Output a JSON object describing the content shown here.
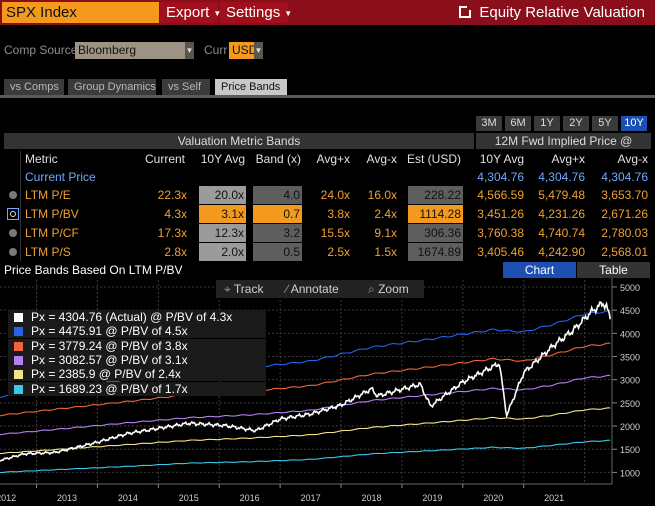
{
  "header": {
    "ticker": "SPX Index",
    "menus": [
      {
        "label": "Export"
      },
      {
        "label": "Settings"
      }
    ],
    "title": "Equity Relative Valuation"
  },
  "source_row": {
    "comp_source_label": "Comp Source",
    "comp_source_value": "Bloomberg",
    "curr_label": "Curr",
    "curr_value": "USD"
  },
  "tabs": [
    "vs Comps",
    "Group Dynamics",
    "vs Self",
    "Price Bands"
  ],
  "ranges": [
    "3M",
    "6M",
    "1Y",
    "2Y",
    "5Y",
    "10Y"
  ],
  "table": {
    "group_left": "Valuation Metric Bands",
    "group_right": "12M Fwd Implied Price @",
    "columns": [
      "Metric",
      "Current",
      "10Y Avg",
      "Band (x)",
      "Avg+x",
      "Avg-x",
      "Est (USD)",
      "10Y Avg",
      "Avg+x",
      "Avg-x"
    ],
    "current_price": {
      "label": "Current Price",
      "values": [
        "4,304.76",
        "4,304.76",
        "4,304.76"
      ]
    },
    "rows": [
      {
        "metric": "LTM P/E",
        "current": "22.3x",
        "avg": "20.0x",
        "band": "4.0",
        "avg_plus": "24.0x",
        "avg_minus": "16.0x",
        "est": "228.22",
        "p_avg": "4,566.59",
        "p_plus": "5,479.48",
        "p_minus": "3,653.70"
      },
      {
        "metric": "LTM P/BV",
        "current": "4.3x",
        "avg": "3.1x",
        "band": "0.7",
        "avg_plus": "3.8x",
        "avg_minus": "2.4x",
        "est": "1114.28",
        "p_avg": "3,451.26",
        "p_plus": "4,231.26",
        "p_minus": "2,671.26"
      },
      {
        "metric": "LTM P/CF",
        "current": "17.3x",
        "avg": "12.3x",
        "band": "3.2",
        "avg_plus": "15.5x",
        "avg_minus": "9.1x",
        "est": "306.36",
        "p_avg": "3,760.38",
        "p_plus": "4,740.74",
        "p_minus": "2,780.03"
      },
      {
        "metric": "LTM P/S",
        "current": "2.8x",
        "avg": "2.0x",
        "band": "0.5",
        "avg_plus": "2.5x",
        "avg_minus": "1.5x",
        "est": "1674.89",
        "p_avg": "3,405.46",
        "p_plus": "4,242.90",
        "p_minus": "2,568.01"
      }
    ]
  },
  "chart_section": {
    "caption": "Price Bands Based On LTM P/BV",
    "view_chart": "Chart",
    "view_table": "Table",
    "tools": {
      "track": "Track",
      "annotate": "Annotate",
      "zoom": "Zoom"
    }
  },
  "chart_data": {
    "type": "line",
    "ylim": [
      750,
      5150
    ],
    "yticks": [
      1000,
      1500,
      2000,
      2500,
      3000,
      3500,
      4000,
      4500,
      5000
    ],
    "xlim": [
      2011.9,
      2021.95
    ],
    "xticks": [
      "2012",
      "2013",
      "2014",
      "2015",
      "2016",
      "2017",
      "2018",
      "2019",
      "2020",
      "2021"
    ],
    "legend": [
      {
        "label": "Px = 4304.76 (Actual) @ P/BV of 4.3x",
        "color": "#ffffff"
      },
      {
        "label": "Px = 4475.91 @ P/BV of 4.5x",
        "color": "#2563eb"
      },
      {
        "label": "Px = 3779.24 @ P/BV of 3.8x",
        "color": "#f0643a"
      },
      {
        "label": "Px = 3082.57 @ P/BV of 3.1x",
        "color": "#b47ff0"
      },
      {
        "label": "Px = 2385.9 @ P/BV of 2.4x",
        "color": "#f3e48a"
      },
      {
        "label": "Px = 1689.23 @ P/BV of 1.7x",
        "color": "#38c8ea"
      }
    ],
    "series": [
      {
        "name": "Actual",
        "color": "#ffffff",
        "x": [
          2011.9,
          2012.3,
          2012.8,
          2013.0,
          2013.5,
          2014.0,
          2014.5,
          2015.0,
          2015.6,
          2016.1,
          2016.5,
          2017.0,
          2017.5,
          2018.0,
          2018.1,
          2018.8,
          2018.97,
          2019.5,
          2020.1,
          2020.22,
          2020.5,
          2021.0,
          2021.3,
          2021.6,
          2021.8,
          2021.86,
          2021.92
        ],
        "values": [
          1260,
          1400,
          1430,
          1490,
          1650,
          1840,
          1950,
          2060,
          2010,
          1900,
          2150,
          2260,
          2450,
          2800,
          2650,
          2900,
          2430,
          2950,
          3350,
          2230,
          3150,
          3750,
          4050,
          4450,
          4650,
          4580,
          4304.76
        ]
      },
      {
        "name": "P/BV 4.5x",
        "color": "#2563eb",
        "x": [
          2011.9,
          2013.0,
          2014.0,
          2015.0,
          2016.0,
          2017.0,
          2018.0,
          2019.0,
          2020.0,
          2020.5,
          2021.0,
          2021.5,
          2021.92
        ],
        "values": [
          2630,
          2840,
          3000,
          3170,
          3260,
          3400,
          3700,
          3880,
          4080,
          4030,
          4200,
          4420,
          4475.91
        ]
      },
      {
        "name": "P/BV 3.8x",
        "color": "#f0643a",
        "x": [
          2011.9,
          2013.0,
          2014.0,
          2015.0,
          2016.0,
          2017.0,
          2018.0,
          2019.0,
          2020.0,
          2020.5,
          2021.0,
          2021.5,
          2021.92
        ],
        "values": [
          2230,
          2390,
          2530,
          2680,
          2750,
          2870,
          3120,
          3280,
          3450,
          3400,
          3550,
          3720,
          3779.24
        ]
      },
      {
        "name": "P/BV 3.1x",
        "color": "#b47ff0",
        "x": [
          2011.9,
          2013.0,
          2014.0,
          2015.0,
          2016.0,
          2017.0,
          2018.0,
          2019.0,
          2020.0,
          2020.5,
          2021.0,
          2021.5,
          2021.92
        ],
        "values": [
          1820,
          1950,
          2070,
          2180,
          2240,
          2340,
          2550,
          2680,
          2810,
          2780,
          2890,
          3040,
          3082.57
        ]
      },
      {
        "name": "P/BV 2.4x",
        "color": "#f3e48a",
        "x": [
          2011.9,
          2013.0,
          2014.0,
          2015.0,
          2016.0,
          2017.0,
          2018.0,
          2019.0,
          2020.0,
          2020.5,
          2021.0,
          2021.5,
          2021.92
        ],
        "values": [
          1410,
          1510,
          1600,
          1690,
          1740,
          1810,
          1970,
          2070,
          2180,
          2150,
          2240,
          2350,
          2385.9
        ]
      },
      {
        "name": "P/BV 1.7x",
        "color": "#38c8ea",
        "x": [
          2011.9,
          2013.0,
          2014.0,
          2015.0,
          2016.0,
          2017.0,
          2018.0,
          2019.0,
          2020.0,
          2020.5,
          2021.0,
          2021.5,
          2021.92
        ],
        "values": [
          1000,
          1070,
          1130,
          1200,
          1230,
          1280,
          1400,
          1470,
          1540,
          1520,
          1590,
          1660,
          1689.23
        ]
      }
    ]
  }
}
